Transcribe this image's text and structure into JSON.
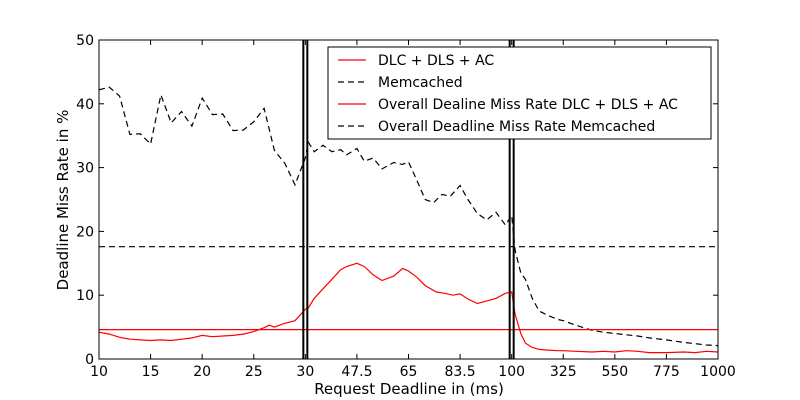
{
  "chart_data": {
    "type": "line",
    "xlabel": "Request Deadline in (ms)",
    "ylabel": "Deadline Miss Rate in %",
    "ylim": [
      0,
      50
    ],
    "y_ticks": [
      0,
      10,
      20,
      30,
      40,
      50
    ],
    "x_ticks": [
      "10",
      "15",
      "20",
      "25",
      "30",
      "47.5",
      "65",
      "83.5",
      "100",
      "325",
      "550",
      "775",
      "1000"
    ],
    "x_scale": "piecewise-linear: 10–30 step 5, 30–100 step 17.5, 100–1000 step 225 (equal spacing per tick)",
    "section_dividers_x": [
      "30",
      "100"
    ],
    "legend_position": "top-right",
    "legend": [
      {
        "label": "DLC + DLS + AC",
        "color": "#ff0000",
        "dash": "solid"
      },
      {
        "label": "Memcached",
        "color": "#000000",
        "dash": "dashed"
      },
      {
        "label": "Overall Dealine Miss Rate DLC + DLS + AC",
        "color": "#ff0000",
        "dash": "solid"
      },
      {
        "label": "Overall Deadline Miss Rate Memcached",
        "color": "#000000",
        "dash": "dashed"
      }
    ],
    "series": [
      {
        "name": "DLC + DLS + AC",
        "color": "#ff0000",
        "dash": "solid",
        "points": [
          [
            10,
            4.2
          ],
          [
            11,
            3.9
          ],
          [
            12,
            3.4
          ],
          [
            13,
            3.1
          ],
          [
            14,
            3.0
          ],
          [
            15,
            2.9
          ],
          [
            16,
            3.0
          ],
          [
            17,
            2.9
          ],
          [
            18,
            3.1
          ],
          [
            19,
            3.3
          ],
          [
            20,
            3.7
          ],
          [
            21,
            3.5
          ],
          [
            22,
            3.6
          ],
          [
            23,
            3.7
          ],
          [
            24,
            3.9
          ],
          [
            25,
            4.3
          ],
          [
            26,
            4.9
          ],
          [
            26.5,
            5.3
          ],
          [
            27,
            5.0
          ],
          [
            28,
            5.6
          ],
          [
            29,
            6.0
          ],
          [
            30,
            7.8
          ],
          [
            31,
            8.0
          ],
          [
            33,
            9.5
          ],
          [
            36,
            11.0
          ],
          [
            39,
            12.5
          ],
          [
            42,
            14.0
          ],
          [
            44,
            14.5
          ],
          [
            47.5,
            15.0
          ],
          [
            50,
            14.5
          ],
          [
            53,
            13.2
          ],
          [
            56,
            12.3
          ],
          [
            60,
            13.0
          ],
          [
            63,
            14.2
          ],
          [
            65,
            13.8
          ],
          [
            68,
            12.8
          ],
          [
            71,
            11.5
          ],
          [
            75,
            10.5
          ],
          [
            78,
            10.3
          ],
          [
            81,
            10.0
          ],
          [
            83.5,
            10.2
          ],
          [
            86,
            9.4
          ],
          [
            89,
            8.7
          ],
          [
            92,
            9.1
          ],
          [
            95,
            9.5
          ],
          [
            98,
            10.3
          ],
          [
            100,
            10.5
          ],
          [
            115,
            7.0
          ],
          [
            140,
            4.0
          ],
          [
            160,
            2.5
          ],
          [
            190,
            1.8
          ],
          [
            220,
            1.5
          ],
          [
            260,
            1.4
          ],
          [
            300,
            1.3
          ],
          [
            325,
            1.3
          ],
          [
            380,
            1.2
          ],
          [
            450,
            1.1
          ],
          [
            500,
            1.2
          ],
          [
            550,
            1.1
          ],
          [
            600,
            1.3
          ],
          [
            650,
            1.2
          ],
          [
            700,
            1.0
          ],
          [
            775,
            1.0
          ],
          [
            850,
            1.1
          ],
          [
            900,
            1.0
          ],
          [
            950,
            1.2
          ],
          [
            1000,
            1.1
          ]
        ]
      },
      {
        "name": "Memcached",
        "color": "#000000",
        "dash": "dashed",
        "points": [
          [
            10,
            42.2
          ],
          [
            11,
            42.6
          ],
          [
            12,
            41.2
          ],
          [
            13,
            35.2
          ],
          [
            14,
            35.3
          ],
          [
            15,
            33.7
          ],
          [
            16,
            41.4
          ],
          [
            17,
            37.0
          ],
          [
            18,
            38.8
          ],
          [
            19,
            36.5
          ],
          [
            20,
            40.9
          ],
          [
            21,
            38.3
          ],
          [
            22,
            38.4
          ],
          [
            23,
            35.8
          ],
          [
            24,
            35.9
          ],
          [
            25,
            37.2
          ],
          [
            26,
            39.3
          ],
          [
            27,
            32.7
          ],
          [
            28,
            30.7
          ],
          [
            29,
            27.3
          ],
          [
            30,
            31.5
          ],
          [
            31,
            34.0
          ],
          [
            33,
            32.5
          ],
          [
            36,
            33.5
          ],
          [
            39,
            32.5
          ],
          [
            42,
            32.8
          ],
          [
            44,
            32.0
          ],
          [
            47.5,
            33.0
          ],
          [
            50,
            31.0
          ],
          [
            53,
            31.5
          ],
          [
            56,
            29.8
          ],
          [
            60,
            30.8
          ],
          [
            63,
            30.5
          ],
          [
            65,
            30.9
          ],
          [
            68,
            28.0
          ],
          [
            71,
            25.0
          ],
          [
            74,
            24.5
          ],
          [
            77,
            25.8
          ],
          [
            80,
            25.5
          ],
          [
            83.5,
            27.2
          ],
          [
            86,
            25.0
          ],
          [
            89,
            22.8
          ],
          [
            92,
            21.8
          ],
          [
            95,
            23.0
          ],
          [
            98,
            21.0
          ],
          [
            100,
            22.5
          ],
          [
            115,
            17.0
          ],
          [
            140,
            13.5
          ],
          [
            160,
            12.5
          ],
          [
            190,
            9.5
          ],
          [
            220,
            7.5
          ],
          [
            260,
            6.8
          ],
          [
            300,
            6.2
          ],
          [
            325,
            6.0
          ],
          [
            380,
            5.3
          ],
          [
            450,
            4.5
          ],
          [
            500,
            4.2
          ],
          [
            550,
            4.0
          ],
          [
            600,
            3.8
          ],
          [
            650,
            3.6
          ],
          [
            700,
            3.3
          ],
          [
            775,
            3.0
          ],
          [
            850,
            2.6
          ],
          [
            900,
            2.4
          ],
          [
            950,
            2.2
          ],
          [
            1000,
            2.1
          ]
        ]
      },
      {
        "name": "Overall Dealine Miss Rate DLC + DLS + AC",
        "color": "#ff0000",
        "dash": "solid",
        "constant": 4.6
      },
      {
        "name": "Overall Deadline Miss Rate Memcached",
        "color": "#000000",
        "dash": "dashed",
        "constant": 17.6
      }
    ]
  }
}
